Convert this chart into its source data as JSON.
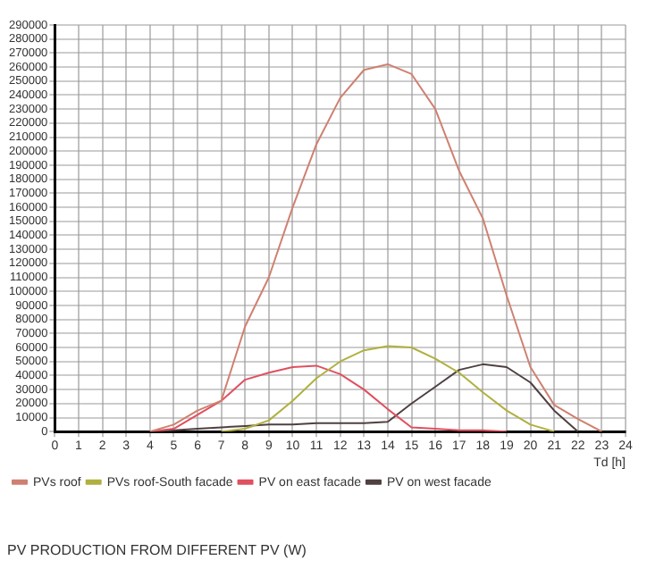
{
  "chart_data": {
    "type": "line",
    "title": "PV PRODUCTION FROM DIFFERENT PV (W)",
    "xlabel": "Td [h]",
    "x": [
      4,
      5,
      6,
      7,
      8,
      9,
      10,
      11,
      12,
      13,
      14,
      15,
      16,
      17,
      18,
      19,
      20,
      21,
      22,
      23
    ],
    "series": [
      {
        "name": "PVs roof",
        "color": "#d08070",
        "values": [
          0,
          5000,
          15000,
          22000,
          75000,
          110000,
          160000,
          205000,
          238000,
          258000,
          262000,
          255000,
          230000,
          186000,
          152000,
          97000,
          46000,
          19000,
          9000,
          0
        ]
      },
      {
        "name": "PVs roof-South facade",
        "color": "#b0b040",
        "values": [
          null,
          null,
          null,
          0,
          2000,
          8000,
          22000,
          38000,
          50000,
          58000,
          61000,
          60000,
          52000,
          42000,
          28000,
          15000,
          5000,
          0,
          null,
          null
        ]
      },
      {
        "name": "PV on east facade",
        "color": "#e05060",
        "values": [
          0,
          2000,
          12000,
          22000,
          37000,
          42000,
          46000,
          47000,
          41000,
          30000,
          16000,
          3000,
          2000,
          1000,
          1000,
          0,
          null,
          null,
          null,
          null
        ]
      },
      {
        "name": "PV on west facade",
        "color": "#504040",
        "values": [
          0,
          1000,
          2000,
          3000,
          4000,
          5000,
          5000,
          6000,
          6000,
          6000,
          7000,
          20000,
          32000,
          44000,
          48000,
          46000,
          35000,
          15000,
          0,
          null
        ]
      }
    ],
    "xlim": [
      0,
      24
    ],
    "xticks": [
      0,
      1,
      2,
      3,
      4,
      5,
      6,
      7,
      8,
      9,
      10,
      11,
      12,
      13,
      14,
      15,
      16,
      17,
      18,
      19,
      20,
      21,
      22,
      23,
      24
    ],
    "ylim": [
      0,
      290000
    ],
    "yticks": [
      0,
      10000,
      20000,
      30000,
      40000,
      50000,
      60000,
      70000,
      80000,
      90000,
      100000,
      110000,
      120000,
      130000,
      140000,
      150000,
      160000,
      170000,
      180000,
      190000,
      200000,
      210000,
      220000,
      230000,
      240000,
      250000,
      260000,
      270000,
      280000,
      290000
    ],
    "grid": true,
    "legend": "bottom left"
  }
}
